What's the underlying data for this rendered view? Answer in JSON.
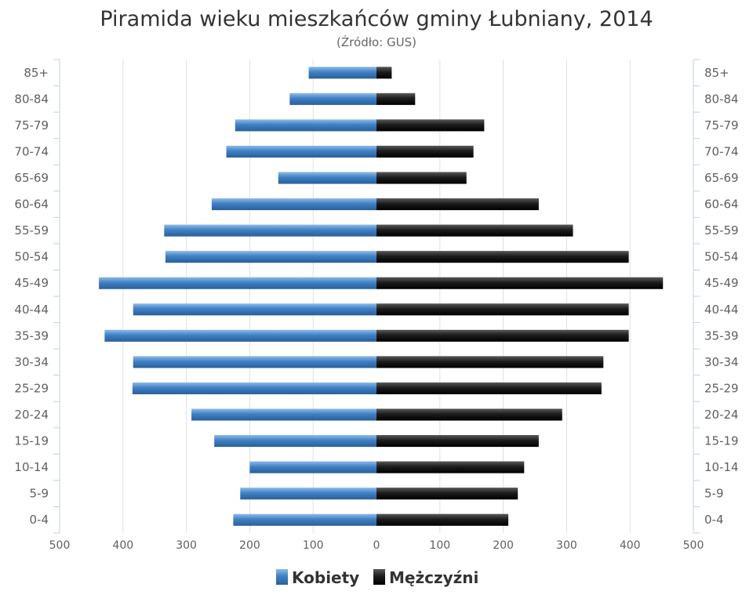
{
  "chart_data": {
    "type": "bar",
    "orientation": "horizontal-population-pyramid",
    "title": "Piramida wieku mieszkańców gminy Łubniany, 2014",
    "subtitle": "(Źródło: GUS)",
    "categories": [
      "0-4",
      "5-9",
      "10-14",
      "15-19",
      "20-24",
      "25-29",
      "30-34",
      "35-39",
      "40-44",
      "45-49",
      "50-54",
      "55-59",
      "60-64",
      "65-69",
      "70-74",
      "75-79",
      "80-84",
      "85+"
    ],
    "series": [
      {
        "name": "Kobiety",
        "side": "left",
        "color": "#3a7bbf",
        "values": [
          226,
          215,
          200,
          256,
          292,
          385,
          384,
          429,
          384,
          438,
          333,
          335,
          260,
          155,
          237,
          223,
          137,
          107
        ]
      },
      {
        "name": "Mężczyźni",
        "side": "right",
        "color": "#1a1a1a",
        "values": [
          208,
          223,
          233,
          256,
          293,
          355,
          358,
          398,
          398,
          452,
          398,
          310,
          256,
          142,
          153,
          170,
          61,
          24
        ]
      }
    ],
    "xlim": [
      -500,
      500
    ],
    "xticks": [
      -500,
      -400,
      -300,
      -200,
      -100,
      0,
      100,
      200,
      300,
      400,
      500
    ],
    "xtick_labels": [
      "500",
      "400",
      "300",
      "200",
      "100",
      "0",
      "100",
      "200",
      "300",
      "400",
      "500"
    ],
    "grid": true,
    "legend_position": "bottom-center"
  }
}
